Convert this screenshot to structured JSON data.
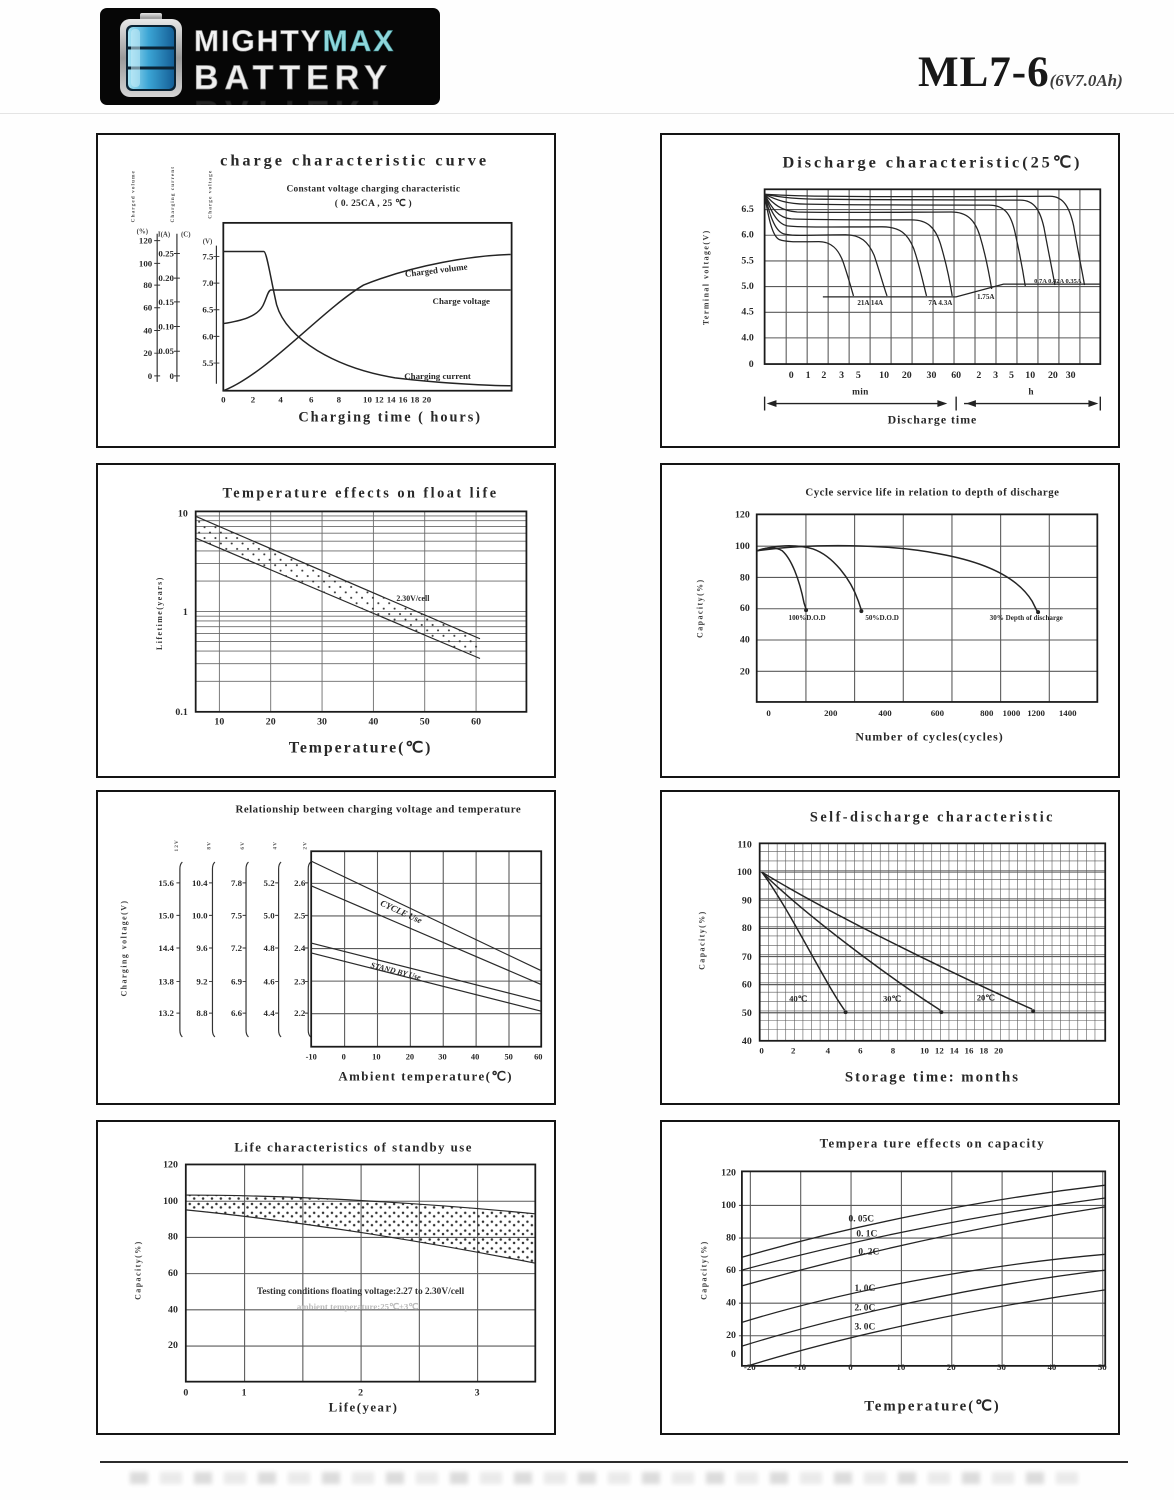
{
  "header": {
    "logo": {
      "word1": "MIGHTY",
      "word2": "MAX",
      "word3": "BATTERY"
    },
    "model": "ML7-6",
    "capacity": "(6V7.0Ah)"
  },
  "colors": {
    "logo_teal": "#8fd6da",
    "logo_bg": "#060606",
    "ink": "#282828",
    "battery_blue": "#2f9fd0"
  },
  "chart_data": [
    {
      "type": "line",
      "title": "charge characteristic curve",
      "subtitle": "Constant voltage charging characteristic",
      "subtitle2": "( 0. 25CA , 25 ℃ )",
      "xlabel": "Charging time ( hours)",
      "xticks": [
        "0",
        "2",
        "4",
        "6",
        "8",
        "10",
        "12",
        "14",
        "16",
        "18",
        "20"
      ],
      "axes": [
        {
          "name": "Charged volume",
          "unit": "(%)",
          "ticks": [
            "120",
            "100",
            "80",
            "60",
            "40",
            "20",
            "0"
          ]
        },
        {
          "name": "Charging current",
          "unit": "I(A)",
          "unit2": "(C)",
          "ticks": [
            "0.25",
            "0.20",
            "0.15",
            "0.10",
            "0.05",
            "0"
          ]
        },
        {
          "name": "Charge voltage",
          "unit": "(V)",
          "ticks": [
            "7.5",
            "7.0",
            "6.5",
            "6.0",
            "5.5"
          ]
        }
      ],
      "curve_labels": [
        "Charged volume",
        "Charge voltage",
        "Charging current"
      ],
      "series": [
        {
          "name": "Charged volume (%)",
          "x_hours": [
            0,
            2,
            4,
            6,
            8,
            12,
            16,
            20
          ],
          "values": [
            0,
            35,
            62,
            80,
            90,
            97,
            100,
            102
          ]
        },
        {
          "name": "Charge voltage (V)",
          "x_hours": [
            0,
            1,
            2,
            3,
            4,
            8,
            20
          ],
          "values": [
            6.35,
            6.5,
            6.6,
            7.35,
            7.45,
            7.45,
            7.45
          ]
        },
        {
          "name": "Charging current (CA)",
          "x_hours": [
            0,
            2.8,
            4,
            6,
            8,
            12,
            20
          ],
          "values": [
            0.25,
            0.25,
            0.12,
            0.07,
            0.05,
            0.03,
            0.02
          ]
        }
      ]
    },
    {
      "type": "line",
      "title": "Discharge characteristic(25℃)",
      "ylabel": "Terminal voltage(V)",
      "xlabel": "Discharge time",
      "yticks": [
        "6.5",
        "6.0",
        "5.5",
        "5.0",
        "4.5",
        "4.0",
        "0"
      ],
      "xticks_min": [
        "0",
        "1",
        "2",
        "3",
        "5",
        "10",
        "20",
        "30",
        "60"
      ],
      "xticks_h": [
        "2",
        "3",
        "5",
        "10",
        "20",
        "30"
      ],
      "section_labels": [
        "min",
        "h"
      ],
      "curve_labels": [
        "21A 14A",
        "7A 4.3A",
        "1.75A",
        "0.7A 0.42A 0.35A"
      ],
      "series": [
        {
          "name": "21A",
          "time_unit": "min",
          "points": [
            [
              0,
              6.75
            ],
            [
              1,
              6.1
            ],
            [
              3,
              5.95
            ],
            [
              4,
              5.6
            ],
            [
              5,
              4.9
            ]
          ]
        },
        {
          "name": "14A",
          "time_unit": "min",
          "points": [
            [
              0,
              6.75
            ],
            [
              1,
              6.2
            ],
            [
              5,
              6.05
            ],
            [
              8,
              5.5
            ],
            [
              9,
              4.9
            ]
          ]
        },
        {
          "name": "7A",
          "time_unit": "min",
          "points": [
            [
              0,
              6.75
            ],
            [
              2,
              6.35
            ],
            [
              15,
              6.2
            ],
            [
              25,
              5.5
            ],
            [
              30,
              4.9
            ]
          ]
        },
        {
          "name": "4.3A",
          "time_unit": "min",
          "points": [
            [
              0,
              6.75
            ],
            [
              2,
              6.45
            ],
            [
              20,
              6.35
            ],
            [
              40,
              5.5
            ],
            [
              48,
              4.95
            ]
          ]
        },
        {
          "name": "1.75A",
          "time_unit": "min",
          "points": [
            [
              0,
              6.75
            ],
            [
              5,
              6.55
            ],
            [
              60,
              6.45
            ],
            [
              150,
              5.6
            ],
            [
              170,
              5.2
            ]
          ]
        },
        {
          "name": "0.7A",
          "time_unit": "h",
          "points": [
            [
              0,
              6.75
            ],
            [
              1,
              6.65
            ],
            [
              5,
              6.5
            ],
            [
              8,
              5.8
            ],
            [
              9,
              5.3
            ]
          ]
        },
        {
          "name": "0.42A",
          "time_unit": "h",
          "points": [
            [
              0,
              6.75
            ],
            [
              2,
              6.7
            ],
            [
              10,
              6.4
            ],
            [
              15,
              5.7
            ],
            [
              16,
              5.3
            ]
          ]
        },
        {
          "name": "0.35A",
          "time_unit": "h",
          "points": [
            [
              0,
              6.75
            ],
            [
              2,
              6.72
            ],
            [
              15,
              6.3
            ],
            [
              22,
              5.6
            ],
            [
              24,
              5.3
            ]
          ]
        }
      ]
    },
    {
      "type": "band",
      "title": "Temperature effects on float life",
      "xlabel": "Temperature(℃)",
      "ylabel": "Lifetime(years)",
      "yscale": "log",
      "yticks": [
        "10",
        "1",
        "0.1"
      ],
      "xticks": [
        "10",
        "20",
        "30",
        "40",
        "50",
        "60"
      ],
      "band_label": "2.30V/cell",
      "band_upper_years": {
        "x_temp_c": [
          10,
          20,
          30,
          40,
          50,
          60
        ],
        "values": [
          8.5,
          5.2,
          3.1,
          1.85,
          1.1,
          0.62
        ]
      },
      "band_lower_years": {
        "x_temp_c": [
          10,
          20,
          30,
          40,
          50,
          60
        ],
        "values": [
          5.2,
          3.1,
          1.85,
          1.1,
          0.62,
          0.4
        ]
      }
    },
    {
      "type": "line",
      "title": "Cycle service life in relation to depth of discharge",
      "xlabel": "Number of cycles(cycles)",
      "ylabel": "Capacity(%)",
      "yticks": [
        "120",
        "100",
        "80",
        "60",
        "40",
        "20"
      ],
      "xticks": [
        "0",
        "200",
        "400",
        "600",
        "800",
        "1000",
        "1200",
        "1400"
      ],
      "curve_labels": [
        "100%D.O.D",
        "50%D.O.D",
        "30% Depth of discharge"
      ],
      "series": [
        {
          "name": "100% depth of discharge",
          "points": [
            [
              0,
              96
            ],
            [
              40,
              98
            ],
            [
              80,
              94
            ],
            [
              110,
              80
            ],
            [
              130,
              62
            ]
          ]
        },
        {
          "name": "50% depth of discharge",
          "points": [
            [
              0,
              96
            ],
            [
              60,
              98
            ],
            [
              150,
              92
            ],
            [
              250,
              78
            ],
            [
              320,
              60
            ]
          ]
        },
        {
          "name": "30% depth of discharge",
          "points": [
            [
              0,
              96
            ],
            [
              200,
              97
            ],
            [
              500,
              92
            ],
            [
              800,
              84
            ],
            [
              1000,
              75
            ],
            [
              1200,
              58
            ]
          ]
        }
      ]
    },
    {
      "type": "band",
      "title": "Relationship between charging voltage and temperature",
      "xlabel": "Ambient temperature(℃)",
      "ylabel": "Charging voltage(V)",
      "xticks": [
        "-10",
        "0",
        "10",
        "20",
        "30",
        "40",
        "50",
        "60"
      ],
      "scale_columns": [
        {
          "group": "12V",
          "ticks": [
            "15.6",
            "15.0",
            "14.4",
            "13.8",
            "13.2"
          ]
        },
        {
          "group": "8V",
          "ticks": [
            "10.4",
            "10.0",
            "9.6",
            "9.2",
            "8.8"
          ]
        },
        {
          "group": "6V",
          "ticks": [
            "7.8",
            "7.5",
            "7.2",
            "6.9",
            "6.6"
          ]
        },
        {
          "group": "4V",
          "ticks": [
            "5.2",
            "5.0",
            "4.8",
            "4.6",
            "4.4"
          ]
        },
        {
          "group": "2V",
          "ticks": [
            "2.6",
            "2.5",
            "2.4",
            "2.3",
            "2.2"
          ]
        }
      ],
      "band_labels": [
        "CYCLE Use",
        "STAND BY Use"
      ],
      "bands_v_per_cell": {
        "cycle_upper": [
          [
            -10,
            2.67
          ],
          [
            60,
            2.33
          ]
        ],
        "cycle_lower": [
          [
            -10,
            2.59
          ],
          [
            60,
            2.29
          ]
        ],
        "standby_upper": [
          [
            -10,
            2.42
          ],
          [
            60,
            2.24
          ]
        ],
        "standby_lower": [
          [
            -10,
            2.39
          ],
          [
            60,
            2.21
          ]
        ]
      }
    },
    {
      "type": "line",
      "title": "Self-discharge characteristic",
      "xlabel": "Storage time: months",
      "ylabel": "Capacity(%)",
      "yticks": [
        "110",
        "100",
        "90",
        "80",
        "70",
        "60",
        "50",
        "40"
      ],
      "xticks": [
        "0",
        "2",
        "4",
        "6",
        "8",
        "10",
        "12",
        "14",
        "16",
        "18",
        "20"
      ],
      "curve_labels": [
        "40℃",
        "30℃",
        "20℃"
      ],
      "series": [
        {
          "name": "40℃",
          "points": [
            [
              0,
              100
            ],
            [
              2,
              79
            ],
            [
              4,
              58
            ],
            [
              5,
              49
            ]
          ]
        },
        {
          "name": "30℃",
          "points": [
            [
              0,
              100
            ],
            [
              4,
              82
            ],
            [
              8,
              62
            ],
            [
              10.5,
              49
            ]
          ]
        },
        {
          "name": "20℃",
          "points": [
            [
              0,
              100
            ],
            [
              6,
              85
            ],
            [
              14,
              62
            ],
            [
              20,
              49
            ]
          ]
        }
      ]
    },
    {
      "type": "band",
      "title": "Life characteristics of standby use",
      "xlabel": "Life(year)",
      "ylabel": "Capacity(%)",
      "yticks": [
        "120",
        "100",
        "80",
        "60",
        "40",
        "20"
      ],
      "xticks": [
        "0",
        "1",
        "2",
        "3"
      ],
      "note1": "Testing conditions floating voltage:2.27 to 2.30V/cell",
      "note2": "ambient temperature:25℃±3℃",
      "band_upper_pct": {
        "x_years": [
          0,
          1,
          2,
          3,
          3.5
        ],
        "values": [
          97,
          96,
          94,
          92,
          90
        ]
      },
      "band_lower_pct": {
        "x_years": [
          0,
          1,
          2,
          3,
          3.5
        ],
        "values": [
          94,
          89,
          82,
          74,
          67
        ]
      }
    },
    {
      "type": "line",
      "title": "Tempera ture effects on capacity",
      "xlabel": "Temperature(℃)",
      "ylabel": "Capacity(%)",
      "yticks": [
        "120",
        "100",
        "80",
        "60",
        "40",
        "20",
        "0"
      ],
      "xticks": [
        "-20",
        "-10",
        "0",
        "10",
        "20",
        "30",
        "40",
        "50"
      ],
      "curve_labels": [
        "0. 05C",
        "0. 1C",
        "0. 2C",
        "1. 0C",
        "2. 0C",
        "3. 0C"
      ],
      "series": [
        {
          "name": "0.05C",
          "x_temp_c": [
            -20,
            0,
            25,
            50
          ],
          "values": [
            68,
            80,
            98,
            112
          ]
        },
        {
          "name": "0.1C",
          "x_temp_c": [
            -20,
            0,
            25,
            50
          ],
          "values": [
            60,
            73,
            90,
            104
          ]
        },
        {
          "name": "0.2C",
          "x_temp_c": [
            -20,
            0,
            25,
            50
          ],
          "values": [
            50,
            64,
            83,
            99
          ]
        },
        {
          "name": "1.0C",
          "x_temp_c": [
            -20,
            0,
            25,
            50
          ],
          "values": [
            28,
            45,
            60,
            70
          ]
        },
        {
          "name": "2.0C",
          "x_temp_c": [
            -20,
            0,
            25,
            50
          ],
          "values": [
            13,
            32,
            48,
            60
          ]
        },
        {
          "name": "3.0C",
          "x_temp_c": [
            -20,
            0,
            25,
            50
          ],
          "values": [
            -2,
            18,
            35,
            48
          ]
        }
      ]
    }
  ]
}
